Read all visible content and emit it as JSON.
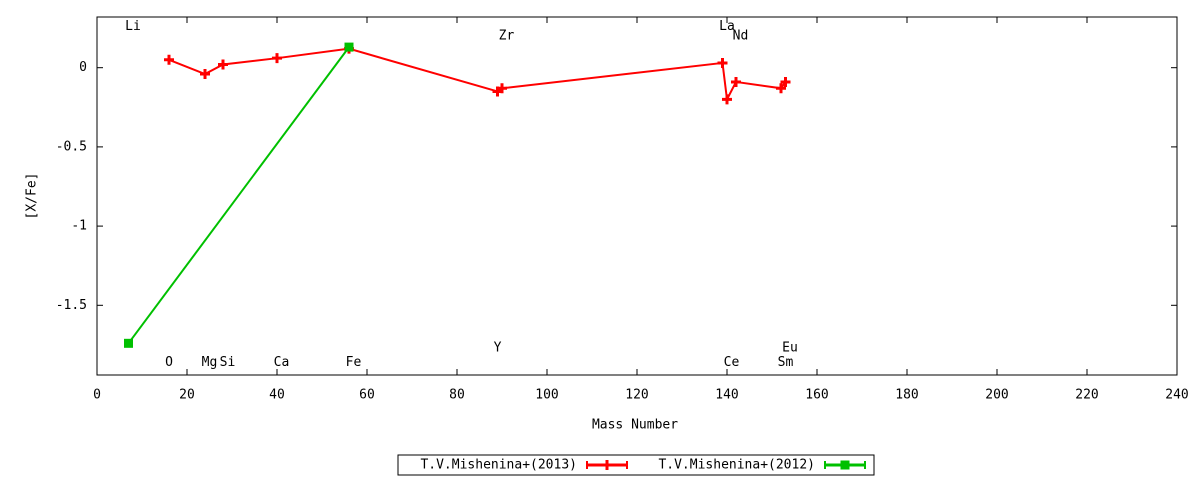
{
  "chart_data": {
    "type": "line",
    "xlabel": "Mass Number",
    "ylabel": "[X/Fe]",
    "xlim": [
      0,
      240
    ],
    "ylim": [
      -1.94,
      0.32
    ],
    "xticks": [
      0,
      20,
      40,
      60,
      80,
      100,
      120,
      140,
      160,
      180,
      200,
      220,
      240
    ],
    "yticks": [
      -1.5,
      -1,
      -0.5,
      0
    ],
    "legend": "bottom",
    "series": [
      {
        "name": "T.V.Mishenina+(2013)",
        "color": "#ff0000",
        "marker": "plus",
        "x": [
          16,
          24,
          28,
          40,
          56,
          89,
          90,
          139,
          140,
          142,
          152,
          153
        ],
        "values": [
          0.05,
          -0.04,
          0.02,
          0.06,
          0.12,
          -0.15,
          -0.13,
          0.03,
          -0.2,
          -0.09,
          -0.13,
          -0.09
        ]
      },
      {
        "name": "T.V.Mishenina+(2012)",
        "color": "#00c000",
        "marker": "square",
        "x": [
          7,
          56
        ],
        "values": [
          -1.74,
          0.13
        ]
      }
    ],
    "annotations": [
      {
        "text": "Li",
        "x": 8,
        "y": 0.26
      },
      {
        "text": "O",
        "x": 16,
        "y": -1.86
      },
      {
        "text": "Mg",
        "x": 25,
        "y": -1.86
      },
      {
        "text": "Si",
        "x": 29,
        "y": -1.86
      },
      {
        "text": "Ca",
        "x": 41,
        "y": -1.86
      },
      {
        "text": "Fe",
        "x": 57,
        "y": -1.86
      },
      {
        "text": "Y",
        "x": 89,
        "y": -1.77
      },
      {
        "text": "Zr",
        "x": 91,
        "y": 0.2
      },
      {
        "text": "La",
        "x": 140,
        "y": 0.26
      },
      {
        "text": "Nd",
        "x": 143,
        "y": 0.2
      },
      {
        "text": "Ce",
        "x": 141,
        "y": -1.86
      },
      {
        "text": "Sm",
        "x": 153,
        "y": -1.86
      },
      {
        "text": "Eu",
        "x": 154,
        "y": -1.77
      }
    ]
  }
}
